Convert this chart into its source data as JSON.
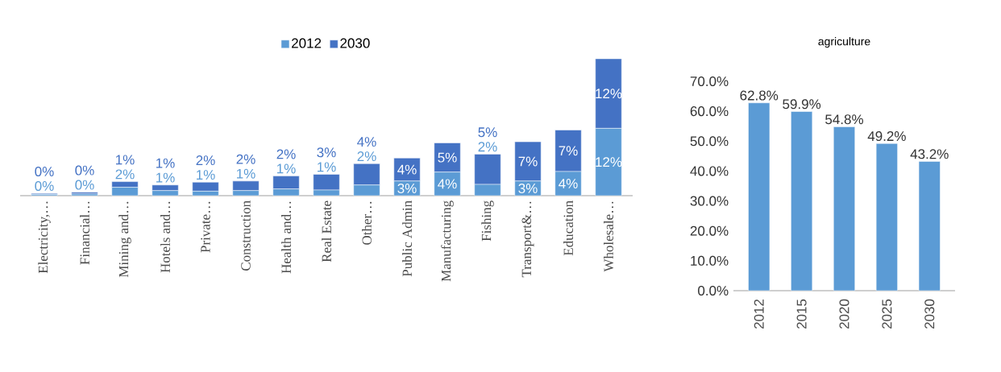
{
  "chart_data": [
    {
      "type": "bar",
      "stacked": true,
      "legend": "top",
      "tick_labels": "x",
      "categories": [
        "Electricity,…",
        "Financial…",
        "Mining and…",
        "Hotels and…",
        "Private…",
        "Construction",
        "Health and…",
        "Real Estate",
        "Other…",
        "Public Admin",
        "Manufacturing",
        "Fishing",
        "Transport&…",
        "Education",
        "Wholesale…"
      ],
      "series": [
        {
          "name": "2012",
          "color": "#5b9bd5",
          "values": [
            0.2,
            0.3,
            1.5,
            0.9,
            0.8,
            0.9,
            1.2,
            1.0,
            1.9,
            2.6,
            4.2,
            2.0,
            2.6,
            4.3,
            12.0
          ],
          "value_labels": [
            "0%",
            "0%",
            "2%",
            "1%",
            "1%",
            "1%",
            "1%",
            "1%",
            "2%",
            "3%",
            "4%",
            "2%",
            "3%",
            "4%",
            "12%"
          ]
        },
        {
          "name": "2030",
          "color": "#4472c4",
          "values": [
            0.2,
            0.3,
            1.0,
            1.0,
            1.6,
            1.7,
            2.3,
            2.8,
            3.8,
            4.1,
            5.2,
            5.4,
            7.0,
            7.4,
            12.4
          ],
          "value_labels": [
            "0%",
            "0%",
            "1%",
            "1%",
            "2%",
            "2%",
            "2%",
            "3%",
            "4%",
            "4%",
            "5%",
            "5%",
            "7%",
            "7%",
            "12%"
          ]
        }
      ]
    },
    {
      "type": "bar",
      "title": "agriculture",
      "categories": [
        "2012",
        "2015",
        "2020",
        "2025",
        "2030"
      ],
      "values": [
        62.8,
        59.9,
        54.8,
        49.2,
        43.2
      ],
      "color": "#5b9bd5",
      "value_labels": [
        "62.8%",
        "59.9%",
        "54.8%",
        "49.2%",
        "43.2%"
      ],
      "ylim": [
        0,
        70
      ],
      "yticks": [
        {
          "value": 0,
          "label": "0.0%"
        },
        {
          "value": 10,
          "label": "10.0%"
        },
        {
          "value": 20,
          "label": "20.0%"
        },
        {
          "value": 30,
          "label": "30.0%"
        },
        {
          "value": 40,
          "label": "40.0%"
        },
        {
          "value": 50,
          "label": "50.0%"
        },
        {
          "value": 60,
          "label": "60.0%"
        },
        {
          "value": 70,
          "label": "70.0%"
        }
      ]
    }
  ]
}
